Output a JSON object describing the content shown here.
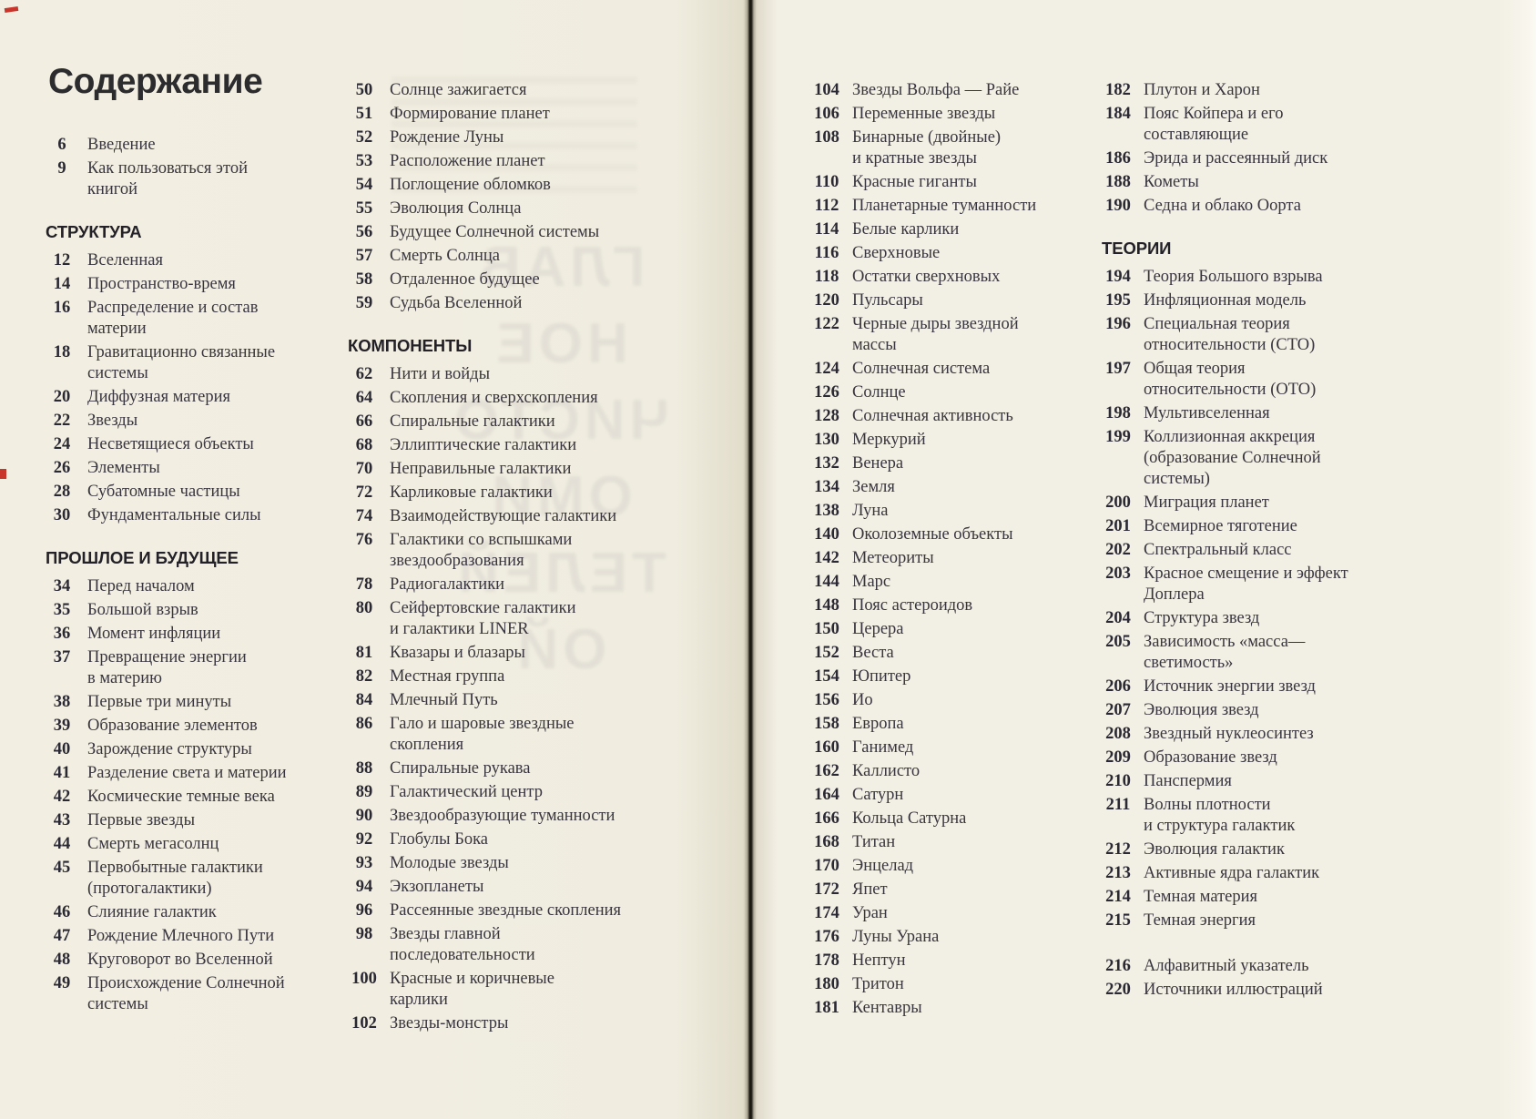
{
  "page_title": "Содержание",
  "ghost_text": "ГЛАВ\nНОЕ\nЧИСТО\nОМИ\nТЕЛЕЙ\nОЙ",
  "columns": [
    {
      "blocks": [
        {
          "items": [
            {
              "n": "6",
              "t": "Введение"
            },
            {
              "n": "9",
              "t": "Как пользоваться этой\nкнигой"
            }
          ]
        },
        {
          "header": "СТРУКТУРА",
          "items": [
            {
              "n": "12",
              "t": "Вселенная"
            },
            {
              "n": "14",
              "t": "Пространство-время"
            },
            {
              "n": "16",
              "t": "Распределение и состав\nматерии"
            },
            {
              "n": "18",
              "t": "Гравитационно связанные\nсистемы"
            },
            {
              "n": "20",
              "t": "Диффузная материя"
            },
            {
              "n": "22",
              "t": "Звезды"
            },
            {
              "n": "24",
              "t": "Несветящиеся объекты"
            },
            {
              "n": "26",
              "t": "Элементы"
            },
            {
              "n": "28",
              "t": "Субатомные частицы"
            },
            {
              "n": "30",
              "t": "Фундаментальные силы"
            }
          ]
        },
        {
          "header": "ПРОШЛОЕ И БУДУЩЕЕ",
          "items": [
            {
              "n": "34",
              "t": "Перед началом"
            },
            {
              "n": "35",
              "t": "Большой взрыв"
            },
            {
              "n": "36",
              "t": "Момент инфляции"
            },
            {
              "n": "37",
              "t": "Превращение энергии\nв материю"
            },
            {
              "n": "38",
              "t": "Первые три минуты"
            },
            {
              "n": "39",
              "t": "Образование элементов"
            },
            {
              "n": "40",
              "t": "Зарождение структуры"
            },
            {
              "n": "41",
              "t": "Разделение света и материи"
            },
            {
              "n": "42",
              "t": "Космические темные века"
            },
            {
              "n": "43",
              "t": "Первые звезды"
            },
            {
              "n": "44",
              "t": "Смерть мегасолнц"
            },
            {
              "n": "45",
              "t": "Первобытные галактики\n(протогалактики)"
            },
            {
              "n": "46",
              "t": "Слияние галактик"
            },
            {
              "n": "47",
              "t": "Рождение Млечного Пути"
            },
            {
              "n": "48",
              "t": "Круговорот во Вселенной"
            },
            {
              "n": "49",
              "t": "Происхождение Солнечной\nсистемы"
            }
          ]
        }
      ]
    },
    {
      "blocks": [
        {
          "items": [
            {
              "n": "50",
              "t": "Солнце зажигается"
            },
            {
              "n": "51",
              "t": "Формирование планет"
            },
            {
              "n": "52",
              "t": "Рождение Луны"
            },
            {
              "n": "53",
              "t": "Расположение планет"
            },
            {
              "n": "54",
              "t": "Поглощение обломков"
            },
            {
              "n": "55",
              "t": "Эволюция Солнца"
            },
            {
              "n": "56",
              "t": "Будущее Солнечной системы"
            },
            {
              "n": "57",
              "t": "Смерть Солнца"
            },
            {
              "n": "58",
              "t": "Отдаленное будущее"
            },
            {
              "n": "59",
              "t": "Судьба Вселенной"
            }
          ]
        },
        {
          "header": "КОМПОНЕНТЫ",
          "items": [
            {
              "n": "62",
              "t": "Нити и войды"
            },
            {
              "n": "64",
              "t": "Скопления и сверхскопления"
            },
            {
              "n": "66",
              "t": "Спиральные галактики"
            },
            {
              "n": "68",
              "t": "Эллиптические галактики"
            },
            {
              "n": "70",
              "t": "Неправильные галактики"
            },
            {
              "n": "72",
              "t": "Карликовые галактики"
            },
            {
              "n": "74",
              "t": "Взаимодействующие галактики"
            },
            {
              "n": "76",
              "t": "Галактики со вспышками\nзвездообразования"
            },
            {
              "n": "78",
              "t": "Радиогалактики"
            },
            {
              "n": "80",
              "t": "Сейфертовские галактики\nи галактики LINER"
            },
            {
              "n": "81",
              "t": "Квазары и блазары"
            },
            {
              "n": "82",
              "t": "Местная группа"
            },
            {
              "n": "84",
              "t": "Млечный Путь"
            },
            {
              "n": "86",
              "t": "Гало и шаровые звездные\nскопления"
            },
            {
              "n": "88",
              "t": "Спиральные рукава"
            },
            {
              "n": "89",
              "t": "Галактический центр"
            },
            {
              "n": "90",
              "t": "Звездообразующие туманности"
            },
            {
              "n": "92",
              "t": "Глобулы Бока"
            },
            {
              "n": "93",
              "t": "Молодые звезды"
            },
            {
              "n": "94",
              "t": "Экзопланеты"
            },
            {
              "n": "96",
              "t": "Рассеянные звездные скопления"
            },
            {
              "n": "98",
              "t": "Звезды главной\nпоследовательности"
            },
            {
              "n": "100",
              "t": "Красные и коричневые\nкарлики"
            },
            {
              "n": "102",
              "t": "Звезды-монстры"
            }
          ]
        }
      ]
    },
    {
      "blocks": [
        {
          "items": [
            {
              "n": "104",
              "t": "Звезды Вольфа — Райе"
            },
            {
              "n": "106",
              "t": "Переменные звезды"
            },
            {
              "n": "108",
              "t": "Бинарные (двойные)\nи кратные звезды"
            },
            {
              "n": "110",
              "t": "Красные гиганты"
            },
            {
              "n": "112",
              "t": "Планетарные туманности"
            },
            {
              "n": "114",
              "t": "Белые карлики"
            },
            {
              "n": "116",
              "t": "Сверхновые"
            },
            {
              "n": "118",
              "t": "Остатки сверхновых"
            },
            {
              "n": "120",
              "t": "Пульсары"
            },
            {
              "n": "122",
              "t": "Черные дыры звездной\nмассы"
            },
            {
              "n": "124",
              "t": "Солнечная система"
            },
            {
              "n": "126",
              "t": "Солнце"
            },
            {
              "n": "128",
              "t": "Солнечная активность"
            },
            {
              "n": "130",
              "t": "Меркурий"
            },
            {
              "n": "132",
              "t": "Венера"
            },
            {
              "n": "134",
              "t": "Земля"
            },
            {
              "n": "138",
              "t": "Луна"
            },
            {
              "n": "140",
              "t": "Околоземные объекты"
            },
            {
              "n": "142",
              "t": "Метеориты"
            },
            {
              "n": "144",
              "t": "Марс"
            },
            {
              "n": "148",
              "t": "Пояс астероидов"
            },
            {
              "n": "150",
              "t": "Церера"
            },
            {
              "n": "152",
              "t": "Веста"
            },
            {
              "n": "154",
              "t": "Юпитер"
            },
            {
              "n": "156",
              "t": "Ио"
            },
            {
              "n": "158",
              "t": "Европа"
            },
            {
              "n": "160",
              "t": "Ганимед"
            },
            {
              "n": "162",
              "t": "Каллисто"
            },
            {
              "n": "164",
              "t": "Сатурн"
            },
            {
              "n": "166",
              "t": "Кольца Сатурна"
            },
            {
              "n": "168",
              "t": "Титан"
            },
            {
              "n": "170",
              "t": "Энцелад"
            },
            {
              "n": "172",
              "t": "Япет"
            },
            {
              "n": "174",
              "t": "Уран"
            },
            {
              "n": "176",
              "t": "Луны Урана"
            },
            {
              "n": "178",
              "t": "Нептун"
            },
            {
              "n": "180",
              "t": "Тритон"
            },
            {
              "n": "181",
              "t": "Кентавры"
            }
          ]
        }
      ]
    },
    {
      "blocks": [
        {
          "items": [
            {
              "n": "182",
              "t": "Плутон и Харон"
            },
            {
              "n": "184",
              "t": "Пояс Койпера и его\nсоставляющие"
            },
            {
              "n": "186",
              "t": "Эрида и рассеянный диск"
            },
            {
              "n": "188",
              "t": "Кометы"
            },
            {
              "n": "190",
              "t": "Седна и облако Оорта"
            }
          ]
        },
        {
          "header": "ТЕОРИИ",
          "items": [
            {
              "n": "194",
              "t": "Теория Большого взрыва"
            },
            {
              "n": "195",
              "t": "Инфляционная модель"
            },
            {
              "n": "196",
              "t": "Специальная теория\nотносительности (СТО)"
            },
            {
              "n": "197",
              "t": "Общая теория\nотносительности (ОТО)"
            },
            {
              "n": "198",
              "t": "Мультивселенная"
            },
            {
              "n": "199",
              "t": "Коллизионная аккреция\n(образование Солнечной\nсистемы)"
            },
            {
              "n": "200",
              "t": "Миграция планет"
            },
            {
              "n": "201",
              "t": "Всемирное тяготение"
            },
            {
              "n": "202",
              "t": "Спектральный класс"
            },
            {
              "n": "203",
              "t": "Красное смещение и эффект\nДоплера"
            },
            {
              "n": "204",
              "t": "Структура звезд"
            },
            {
              "n": "205",
              "t": "Зависимость «масса—\nсветимость»"
            },
            {
              "n": "206",
              "t": "Источник энергии звезд"
            },
            {
              "n": "207",
              "t": "Эволюция звезд"
            },
            {
              "n": "208",
              "t": "Звездный нуклеосинтез"
            },
            {
              "n": "209",
              "t": "Образование звезд"
            },
            {
              "n": "210",
              "t": "Панспермия"
            },
            {
              "n": "211",
              "t": "Волны плотности\nи структура галактик"
            },
            {
              "n": "212",
              "t": "Эволюция галактик"
            },
            {
              "n": "213",
              "t": "Активные ядра галактик"
            },
            {
              "n": "214",
              "t": "Темная материя"
            },
            {
              "n": "215",
              "t": "Темная энергия"
            }
          ]
        },
        {
          "gap": true,
          "items": [
            {
              "n": "216",
              "t": "Алфавитный указатель"
            },
            {
              "n": "220",
              "t": "Источники иллюстраций"
            }
          ]
        }
      ]
    }
  ],
  "colors": {
    "paper_left": "#f0ede0",
    "paper_right": "#f2efe4",
    "spine": "#17150f",
    "heading_text": "#232127",
    "body_text": "#39353f",
    "number_text": "#2a2833",
    "artifact_red": "#c9342b"
  }
}
